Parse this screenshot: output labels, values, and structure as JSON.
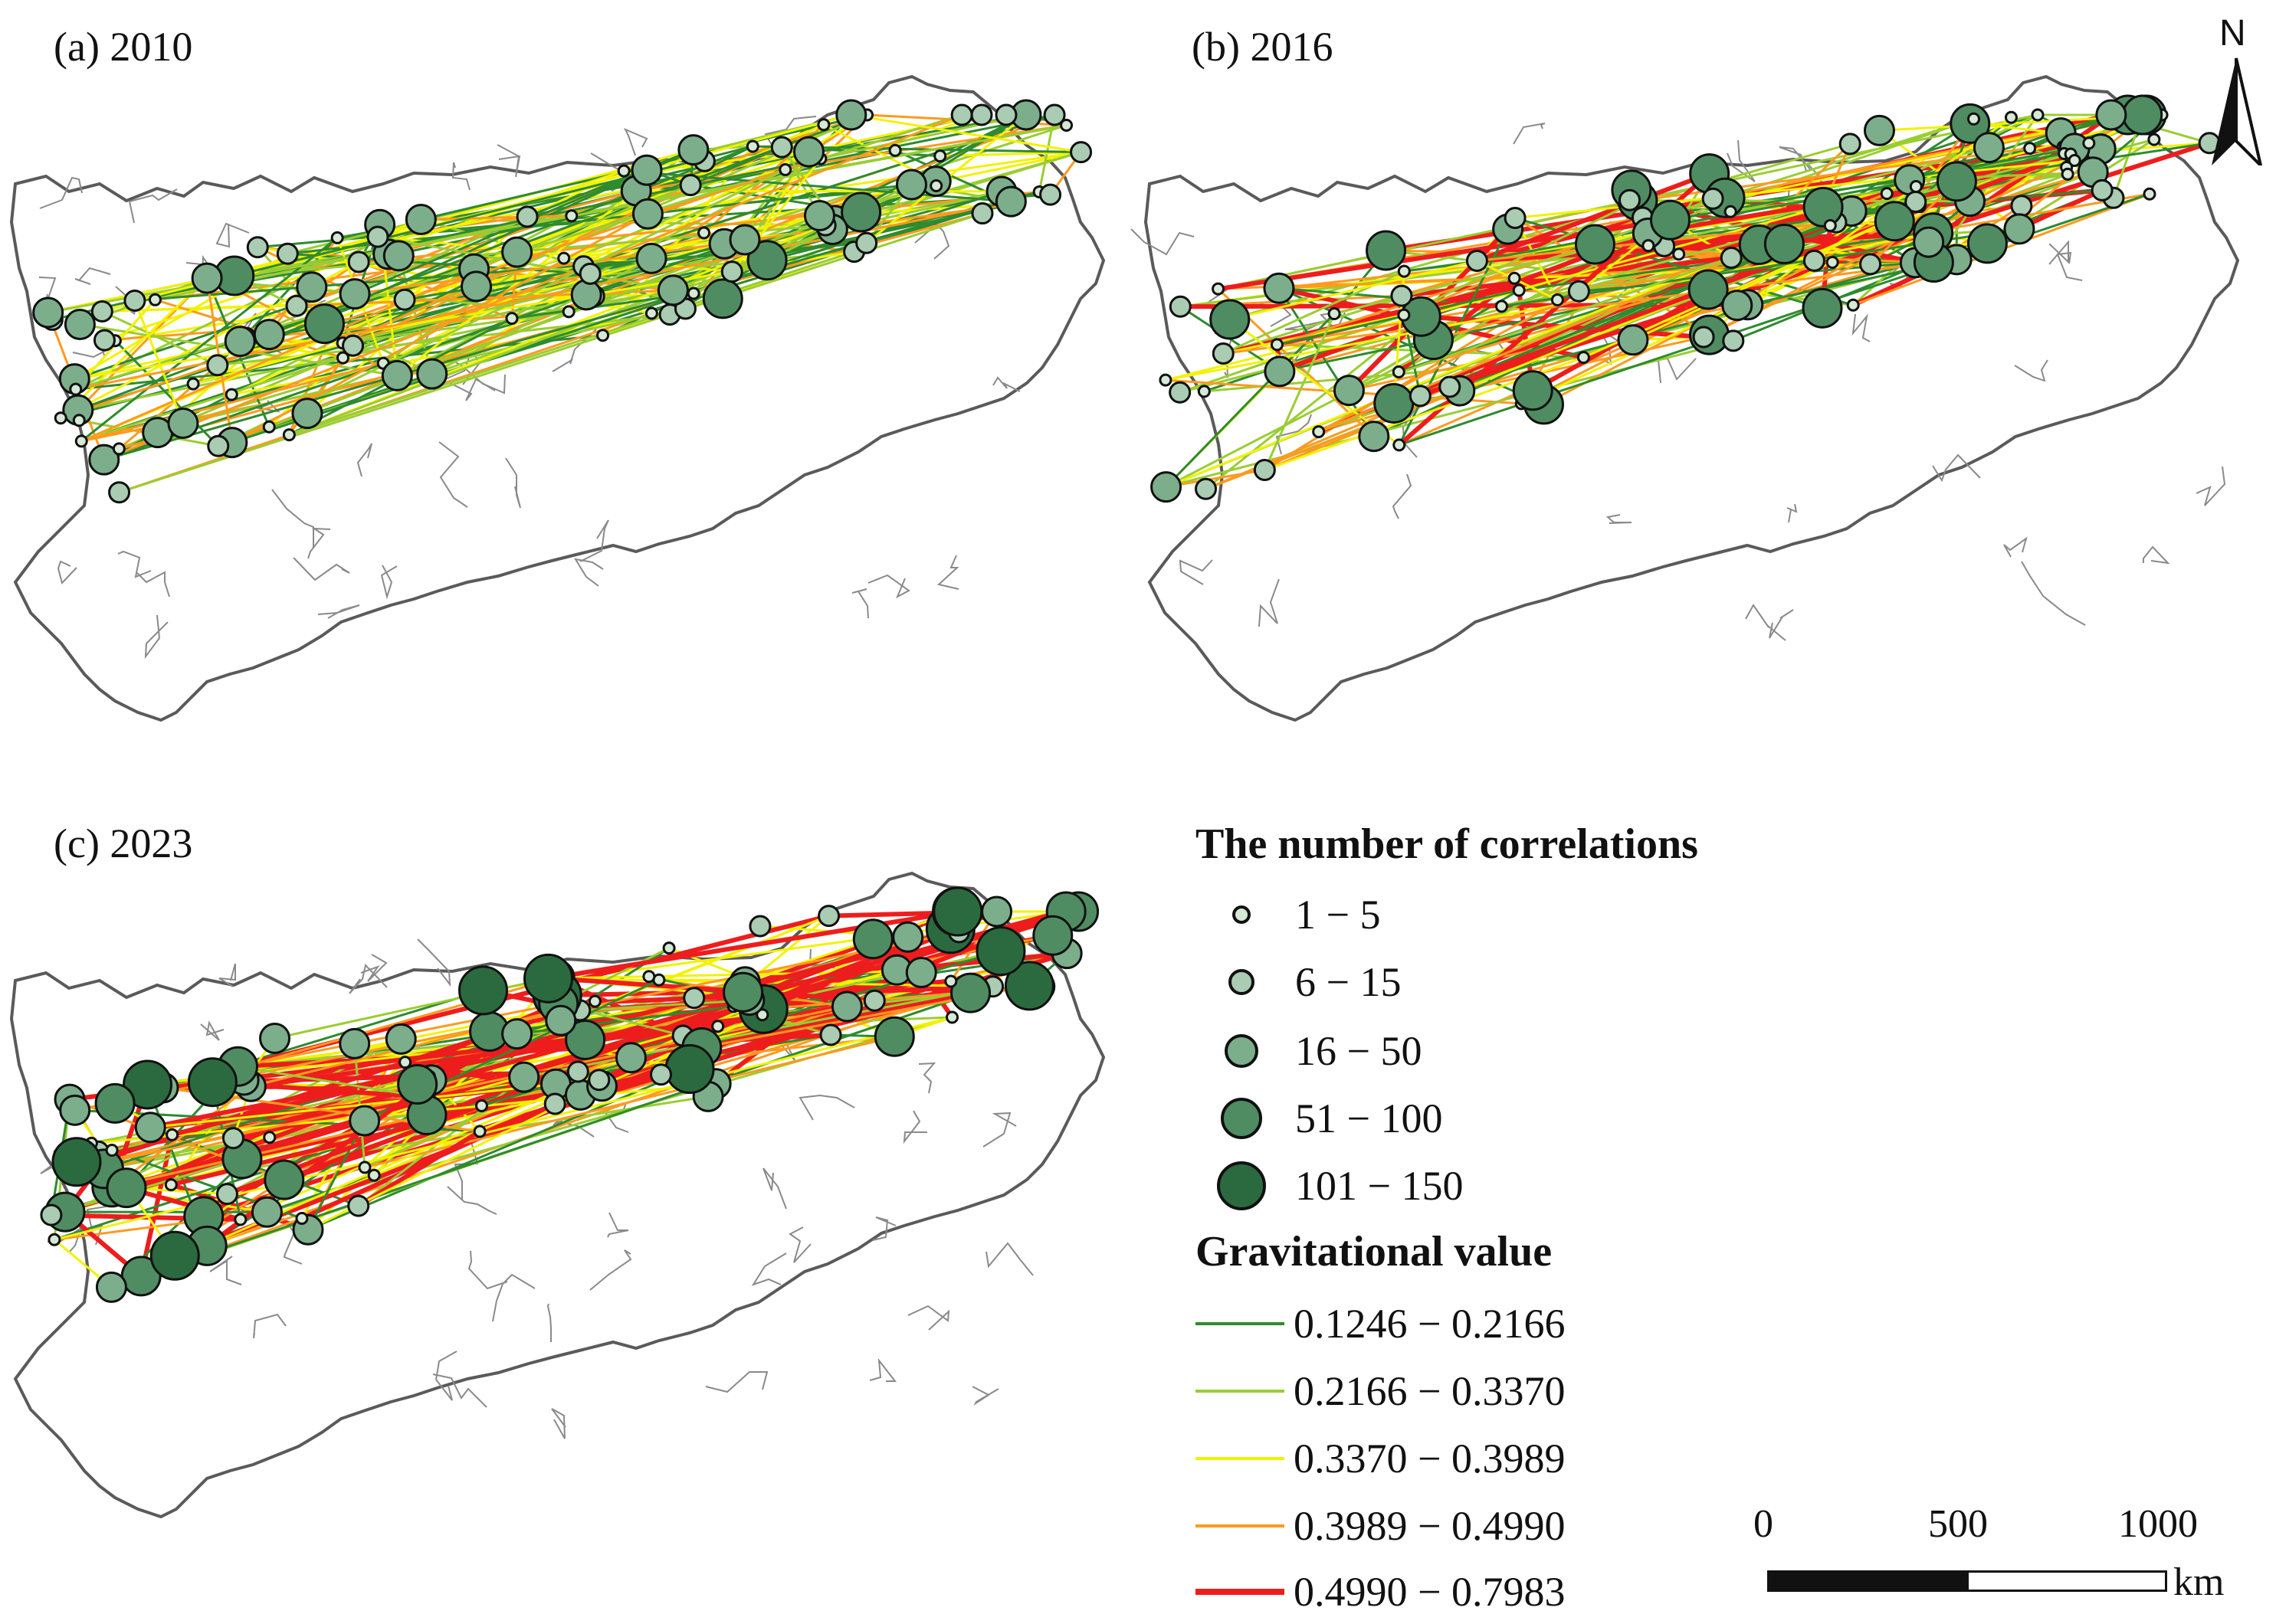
{
  "panels": [
    {
      "id": "a",
      "label": "(a) 2010"
    },
    {
      "id": "b",
      "label": "(b) 2016"
    },
    {
      "id": "c",
      "label": "(c) 2023"
    }
  ],
  "legend": {
    "correlations_title": "The number of correlations",
    "correlation_classes": [
      {
        "label": "1 − 5",
        "color": "#d6e9d6"
      },
      {
        "label": "6 − 15",
        "color": "#a9ccb2"
      },
      {
        "label": "16 − 50",
        "color": "#7cae8c"
      },
      {
        "label": "51 − 100",
        "color": "#4f8c62"
      },
      {
        "label": "101 − 150",
        "color": "#2b6a3e"
      }
    ],
    "gravity_title": "Gravitational value",
    "gravity_classes": [
      {
        "label": "0.1246 − 0.2166",
        "color": "#2e8b2e"
      },
      {
        "label": "0.2166 − 0.3370",
        "color": "#9acd32"
      },
      {
        "label": "0.3370 − 0.3989",
        "color": "#f2f200"
      },
      {
        "label": "0.3989 − 0.4990",
        "color": "#ff9a1f"
      },
      {
        "label": "0.4990 − 0.7983",
        "color": "#ee1d1d"
      }
    ]
  },
  "north_arrow": {
    "label": "N"
  },
  "scale_bar": {
    "ticks": [
      "0",
      "500",
      "1000"
    ],
    "unit": "km"
  },
  "colors": {
    "boundary": "#5a5a5a",
    "circle_stroke": "#111111"
  }
}
